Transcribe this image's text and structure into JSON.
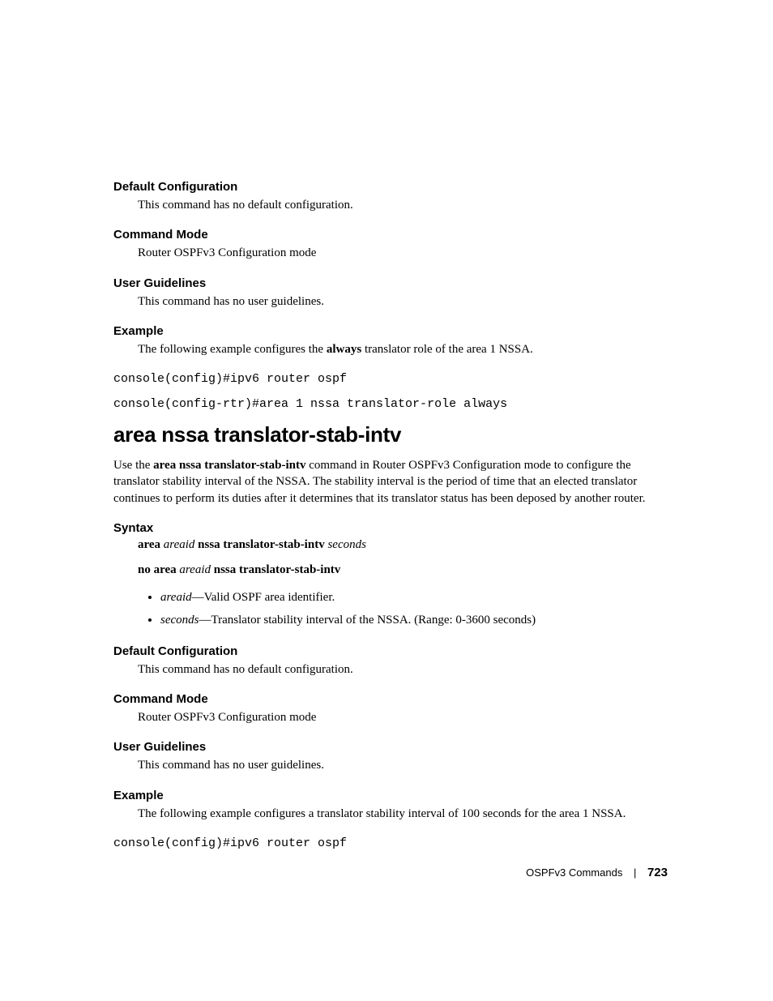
{
  "section1": {
    "defaultConfig": {
      "heading": "Default Configuration",
      "text": "This command has no default configuration."
    },
    "commandMode": {
      "heading": "Command Mode",
      "text": "Router OSPFv3 Configuration mode"
    },
    "userGuidelines": {
      "heading": "User Guidelines",
      "text": "This command has no user guidelines."
    },
    "example": {
      "heading": "Example",
      "intro_pre": "The following example configures the ",
      "intro_bold": "always",
      "intro_post": " translator role of the area 1 NSSA.",
      "cmd1": "console(config)#ipv6 router ospf",
      "cmd2": "console(config-rtr)#area 1 nssa translator-role always"
    }
  },
  "section2": {
    "title": "area nssa translator-stab-intv",
    "intro_pre": "Use the ",
    "intro_bold": "area nssa translator-stab-intv",
    "intro_post": " command in Router OSPFv3 Configuration mode to configure the translator stability interval of the NSSA. The stability interval is the period of time that an elected translator continues to perform its duties after it determines that its translator status has been deposed by another router.",
    "syntax": {
      "heading": "Syntax",
      "line1_b1": "area ",
      "line1_i1": "areaid",
      "line1_b2": " nssa translator-stab-intv ",
      "line1_i2": "seconds",
      "line2_b1": "no area ",
      "line2_i1": "areaid",
      "line2_b2": " nssa translator-stab-intv",
      "bullets": [
        {
          "param": "areaid",
          "desc": "—Valid OSPF area identifier."
        },
        {
          "param": "seconds",
          "desc": "—Translator stability interval of the NSSA. (Range: 0-3600 seconds)"
        }
      ]
    },
    "defaultConfig": {
      "heading": "Default Configuration",
      "text": "This command has no default configuration."
    },
    "commandMode": {
      "heading": "Command Mode",
      "text": "Router OSPFv3 Configuration mode"
    },
    "userGuidelines": {
      "heading": "User Guidelines",
      "text": "This command has no user guidelines."
    },
    "example": {
      "heading": "Example",
      "intro": "The following example configures a translator stability interval of 100 seconds for the area 1 NSSA.",
      "cmd1": "console(config)#ipv6 router ospf"
    }
  },
  "footer": {
    "section": "OSPFv3 Commands",
    "page": "723"
  }
}
